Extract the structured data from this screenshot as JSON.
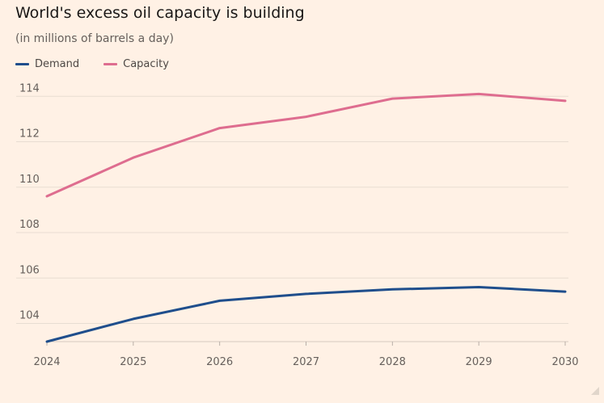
{
  "chart_data": {
    "type": "line",
    "title": "World's excess oil capacity is building",
    "subtitle": "(in millions of barrels a day)",
    "x": [
      2024,
      2025,
      2026,
      2027,
      2028,
      2029,
      2030
    ],
    "series": [
      {
        "name": "Demand",
        "color": "#1f4e8c",
        "values": [
          103.2,
          104.2,
          105.0,
          105.3,
          105.5,
          105.6,
          105.4
        ]
      },
      {
        "name": "Capacity",
        "color": "#de6d8f",
        "values": [
          109.6,
          111.3,
          112.6,
          113.1,
          113.9,
          114.1,
          113.8
        ]
      }
    ],
    "xlabel": "",
    "ylabel": "",
    "ylim": [
      103.2,
      114.4
    ],
    "yticks": [
      104,
      106,
      108,
      110,
      112,
      114
    ],
    "xticks": [
      2024,
      2025,
      2026,
      2027,
      2028,
      2029,
      2030
    ],
    "grid": true,
    "legend_position": "top-left",
    "background": "#fff1e5",
    "gridline_color": "#e8ddd2"
  }
}
